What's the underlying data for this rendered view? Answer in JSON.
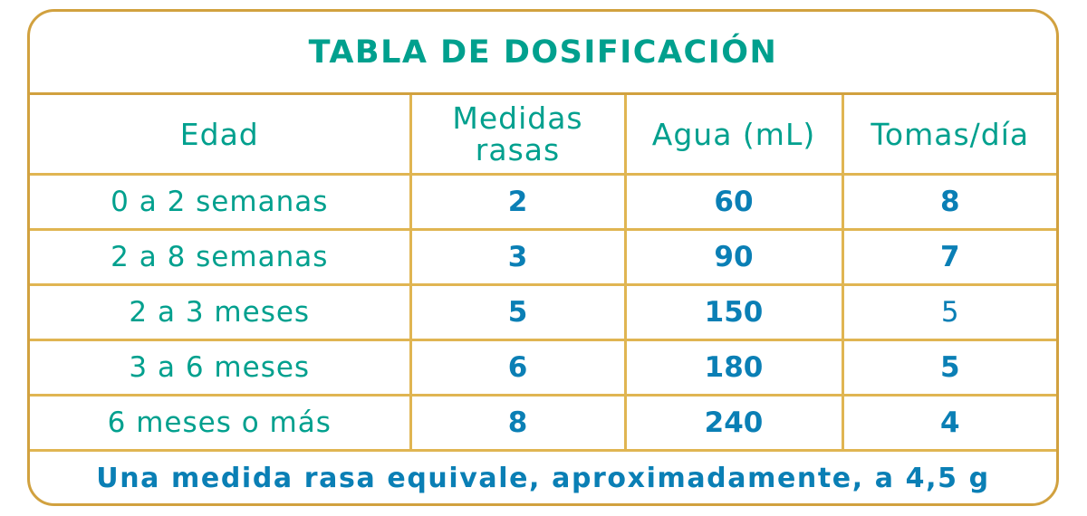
{
  "title": "TABLA DE DOSIFICACIÓN",
  "headers": [
    "Edad",
    "Medidas rasas",
    "Agua (mL)",
    "Tomas/día"
  ],
  "rows": [
    [
      "0 a 2 semanas",
      "2",
      "60",
      "8"
    ],
    [
      "2 a 8 semanas",
      "3",
      "90",
      "7"
    ],
    [
      "2 a 3 meses",
      "5",
      "150",
      "5"
    ],
    [
      "3 a 6 meses",
      "6",
      "180",
      "5"
    ],
    [
      "6 meses o más",
      "8",
      "240",
      "4"
    ]
  ],
  "footnote": "Una medida rasa equivale, aproximadamente, a 4,5 g",
  "colors": {
    "teal": "#00a08e",
    "blue": "#0a7fb5",
    "gold": "#d1a13f"
  }
}
